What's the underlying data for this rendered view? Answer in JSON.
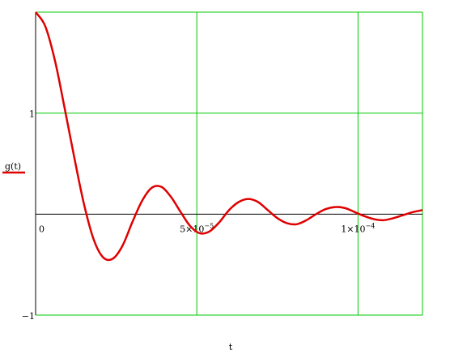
{
  "chart_data": {
    "type": "line",
    "title": "",
    "xlabel": "t",
    "ylabel": "g(t)",
    "xlim": [
      0,
      0.00012
    ],
    "ylim": [
      -1,
      2
    ],
    "grid": true,
    "x_tick_values": [
      0,
      5e-05,
      0.0001
    ],
    "x_tick_labels": [
      {
        "base": "0",
        "exp": ""
      },
      {
        "base": "5×10",
        "exp": "−5"
      },
      {
        "base": "1×10",
        "exp": "−4"
      }
    ],
    "y_tick_values": [
      -1,
      1
    ],
    "y_tick_labels": [
      "−1",
      "1"
    ],
    "colors": {
      "series": "#e00000",
      "grid": "#00c800",
      "axis": "#000000"
    },
    "series": [
      {
        "name": "g(t)",
        "x": [
          0,
          3e-06,
          6e-06,
          9e-06,
          1.2e-05,
          1.5e-05,
          1.8e-05,
          2.1e-05,
          2.4e-05,
          2.7e-05,
          3e-05,
          3.3e-05,
          3.6e-05,
          3.9e-05,
          4.2e-05,
          4.5e-05,
          4.8e-05,
          5.1e-05,
          5.4e-05,
          5.7e-05,
          6e-05,
          6.3e-05,
          6.6e-05,
          6.9e-05,
          7.2e-05,
          7.5e-05,
          7.8e-05,
          8.1e-05,
          8.4e-05,
          8.7e-05,
          9e-05,
          9.3e-05,
          9.6e-05,
          9.9e-05,
          0.000102,
          0.000105,
          0.000108,
          0.000111,
          0.000114,
          0.000117,
          0.00012
        ],
        "values": [
          2,
          1.86,
          1.52,
          1.05,
          0.56,
          0.1,
          -0.25,
          -0.43,
          -0.44,
          -0.31,
          -0.08,
          0.13,
          0.26,
          0.27,
          0.17,
          0.02,
          -0.12,
          -0.19,
          -0.17,
          -0.08,
          0.04,
          0.12,
          0.15,
          0.12,
          0.04,
          -0.04,
          -0.09,
          -0.1,
          -0.06,
          0,
          0.05,
          0.07,
          0.06,
          0.02,
          -0.02,
          -0.05,
          -0.06,
          -0.04,
          -0.01,
          0.02,
          0.04
        ]
      }
    ]
  }
}
